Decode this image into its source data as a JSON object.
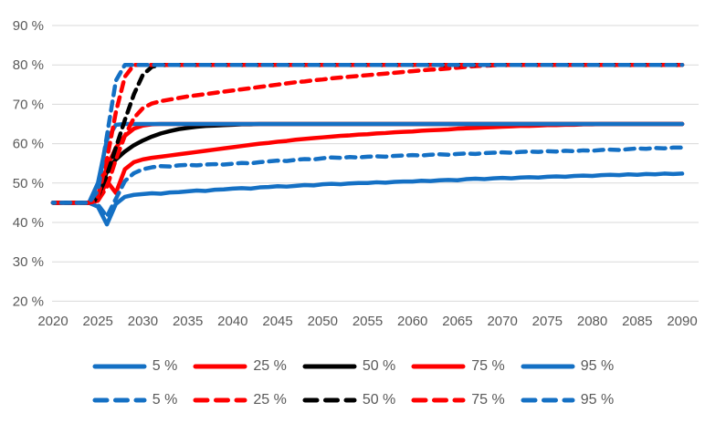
{
  "chart_data": {
    "type": "line",
    "title": "",
    "xlabel": "",
    "ylabel": "",
    "x_range": [
      2020,
      2090
    ],
    "x_step": 1,
    "ylim": [
      20,
      90
    ],
    "grid": "horizontal",
    "legend_position": "bottom-two-rows",
    "colors": {
      "blue": "#1470C4",
      "red": "#FF0000",
      "black": "#000000",
      "grid": "#D9D9D9",
      "text": "#595959"
    },
    "y_ticks": [
      {
        "v": 90,
        "label": "90 %"
      },
      {
        "v": 80,
        "label": "80 %"
      },
      {
        "v": 70,
        "label": "70 %"
      },
      {
        "v": 60,
        "label": "60 %"
      },
      {
        "v": 50,
        "label": "50 %"
      },
      {
        "v": 40,
        "label": "40 %"
      },
      {
        "v": 30,
        "label": "30 %"
      },
      {
        "v": 20,
        "label": "20 %"
      }
    ],
    "x_ticks": [
      {
        "v": 2020,
        "label": "2020"
      },
      {
        "v": 2025,
        "label": "2025"
      },
      {
        "v": 2030,
        "label": "2030"
      },
      {
        "v": 2035,
        "label": "2035"
      },
      {
        "v": 2040,
        "label": "2040"
      },
      {
        "v": 2045,
        "label": "2045"
      },
      {
        "v": 2050,
        "label": "2050"
      },
      {
        "v": 2055,
        "label": "2055"
      },
      {
        "v": 2060,
        "label": "2060"
      },
      {
        "v": 2065,
        "label": "2065"
      },
      {
        "v": 2070,
        "label": "2070"
      },
      {
        "v": 2075,
        "label": "2075"
      },
      {
        "v": 2080,
        "label": "2080"
      },
      {
        "v": 2085,
        "label": "2085"
      },
      {
        "v": 2090,
        "label": "2090"
      }
    ],
    "series": [
      {
        "name": "5 %",
        "color": "#1470C4",
        "dash": false,
        "values": [
          45,
          45,
          45,
          45,
          45,
          44,
          39.5,
          44.7,
          46.5,
          47,
          47.2,
          47.4,
          47.3,
          47.6,
          47.7,
          47.9,
          48.1,
          48,
          48.3,
          48.4,
          48.6,
          48.7,
          48.6,
          48.9,
          49,
          49.2,
          49.1,
          49.3,
          49.5,
          49.4,
          49.7,
          49.8,
          49.7,
          49.9,
          50,
          50,
          50.2,
          50.1,
          50.3,
          50.4,
          50.4,
          50.6,
          50.5,
          50.7,
          50.8,
          50.7,
          51,
          51.1,
          51,
          51.2,
          51.3,
          51.2,
          51.4,
          51.5,
          51.4,
          51.6,
          51.7,
          51.6,
          51.8,
          51.9,
          51.8,
          52,
          52.1,
          52,
          52.2,
          52.1,
          52.3,
          52.2,
          52.4,
          52.3,
          52.4
        ]
      },
      {
        "name": "25 %",
        "color": "#FF0000",
        "dash": false,
        "values": [
          45,
          45,
          45,
          45,
          45,
          45.5,
          50.5,
          47.5,
          53.5,
          55.3,
          56,
          56.4,
          56.7,
          57,
          57.3,
          57.6,
          57.9,
          58.2,
          58.5,
          58.8,
          59.1,
          59.4,
          59.7,
          60,
          60.2,
          60.5,
          60.7,
          61,
          61.2,
          61.4,
          61.6,
          61.8,
          62,
          62.1,
          62.3,
          62.4,
          62.6,
          62.7,
          62.9,
          63,
          63.1,
          63.3,
          63.4,
          63.5,
          63.6,
          63.8,
          63.9,
          64,
          64.1,
          64.2,
          64.3,
          64.4,
          64.5,
          64.5,
          64.6,
          64.7,
          64.7,
          64.8,
          64.8,
          64.9,
          64.9,
          65,
          65,
          65,
          65,
          65,
          65,
          65,
          65,
          65,
          65
        ]
      },
      {
        "name": "50 %",
        "color": "#000000",
        "dash": false,
        "values": [
          45,
          45,
          45,
          45,
          45,
          46,
          53,
          56,
          58,
          59.6,
          60.8,
          61.8,
          62.6,
          63.2,
          63.7,
          64,
          64.3,
          64.5,
          64.6,
          64.7,
          64.8,
          64.9,
          64.9,
          65,
          65,
          65,
          65,
          65,
          65,
          65,
          65,
          65,
          65,
          65,
          65,
          65,
          65,
          65,
          65,
          65,
          65,
          65,
          65,
          65,
          65,
          65,
          65,
          65,
          65,
          65,
          65,
          65,
          65,
          65,
          65,
          65,
          65,
          65,
          65,
          65,
          65,
          65,
          65,
          65,
          65,
          65,
          65,
          65,
          65,
          65,
          65
        ]
      },
      {
        "name": "75 %",
        "color": "#FF0000",
        "dash": false,
        "values": [
          45,
          45,
          45,
          45,
          45,
          47,
          54,
          59,
          62,
          63.8,
          64.6,
          64.9,
          65,
          65,
          65,
          65,
          65,
          65,
          65,
          65,
          65,
          65,
          65,
          65,
          65,
          65,
          65,
          65,
          65,
          65,
          65,
          65,
          65,
          65,
          65,
          65,
          65,
          65,
          65,
          65,
          65,
          65,
          65,
          65,
          65,
          65,
          65,
          65,
          65,
          65,
          65,
          65,
          65,
          65,
          65,
          65,
          65,
          65,
          65,
          65,
          65,
          65,
          65,
          65,
          65,
          65,
          65,
          65,
          65,
          65,
          65
        ]
      },
      {
        "name": "95 %",
        "color": "#1470C4",
        "dash": false,
        "values": [
          45,
          45,
          45,
          45,
          45,
          50,
          61,
          64.8,
          65,
          65,
          65,
          65,
          65,
          65,
          65,
          65,
          65,
          65,
          65,
          65,
          65,
          65,
          65,
          65,
          65,
          65,
          65,
          65,
          65,
          65,
          65,
          65,
          65,
          65,
          65,
          65,
          65,
          65,
          65,
          65,
          65,
          65,
          65,
          65,
          65,
          65,
          65,
          65,
          65,
          65,
          65,
          65,
          65,
          65,
          65,
          65,
          65,
          65,
          65,
          65,
          65,
          65,
          65,
          65,
          65,
          65,
          65,
          65,
          65,
          65,
          65
        ]
      },
      {
        "name": "5 %",
        "color": "#1470C4",
        "dash": true,
        "values": [
          45,
          45,
          45,
          45,
          45,
          44.5,
          41.5,
          46,
          50.5,
          52.5,
          53.5,
          54,
          54.3,
          54.2,
          54.5,
          54.6,
          54.5,
          54.7,
          54.8,
          54.7,
          54.9,
          55.1,
          55,
          55.3,
          55.5,
          55.7,
          55.6,
          55.9,
          56.1,
          56,
          56.3,
          56.5,
          56.4,
          56.6,
          56.5,
          56.7,
          56.8,
          56.7,
          56.9,
          57,
          57.1,
          57,
          57.2,
          57.3,
          57.2,
          57.4,
          57.5,
          57.4,
          57.6,
          57.7,
          57.8,
          57.7,
          57.9,
          58,
          57.9,
          58.1,
          58,
          58.2,
          58.1,
          58.3,
          58.2,
          58.4,
          58.5,
          58.4,
          58.6,
          58.8,
          58.7,
          58.9,
          58.8,
          59,
          59
        ]
      },
      {
        "name": "25 %",
        "color": "#FF0000",
        "dash": true,
        "values": [
          45,
          45,
          45,
          45,
          45,
          45.5,
          49,
          56,
          62,
          66.5,
          69,
          70.2,
          70.8,
          71.2,
          71.6,
          72,
          72.3,
          72.6,
          72.9,
          73.2,
          73.5,
          73.8,
          74.1,
          74.4,
          74.7,
          75,
          75.3,
          75.6,
          75.8,
          76.1,
          76.3,
          76.6,
          76.8,
          77,
          77.2,
          77.4,
          77.6,
          77.8,
          78,
          78.2,
          78.4,
          78.6,
          78.8,
          78.9,
          79.1,
          79.3,
          79.5,
          79.7,
          79.8,
          79.9,
          80,
          80,
          80,
          80,
          80,
          80,
          80,
          80,
          80,
          80,
          80,
          80,
          80,
          80,
          80,
          80,
          80,
          80,
          80,
          80,
          80
        ]
      },
      {
        "name": "50 %",
        "color": "#000000",
        "dash": true,
        "values": [
          45,
          45,
          45,
          45,
          45,
          46.5,
          52,
          59,
          66,
          72.5,
          77.5,
          79.5,
          80,
          80,
          80,
          80,
          80,
          80,
          80,
          80,
          80,
          80,
          80,
          80,
          80,
          80,
          80,
          80,
          80,
          80,
          80,
          80,
          80,
          80,
          80,
          80,
          80,
          80,
          80,
          80,
          80,
          80,
          80,
          80,
          80,
          80,
          80,
          80,
          80,
          80,
          80,
          80,
          80,
          80,
          80,
          80,
          80,
          80,
          80,
          80,
          80,
          80,
          80,
          80,
          80,
          80,
          80,
          80,
          80,
          80,
          80
        ]
      },
      {
        "name": "75 %",
        "color": "#FF0000",
        "dash": true,
        "values": [
          45,
          45,
          45,
          45,
          45,
          46.5,
          56,
          68,
          77,
          80,
          80,
          80,
          80,
          80,
          80,
          80,
          80,
          80,
          80,
          80,
          80,
          80,
          80,
          80,
          80,
          80,
          80,
          80,
          80,
          80,
          80,
          80,
          80,
          80,
          80,
          80,
          80,
          80,
          80,
          80,
          80,
          80,
          80,
          80,
          80,
          80,
          80,
          80,
          80,
          80,
          80,
          80,
          80,
          80,
          80,
          80,
          80,
          80,
          80,
          80,
          80,
          80,
          80,
          80,
          80,
          80,
          80,
          80,
          80,
          80,
          80
        ]
      },
      {
        "name": "95 %",
        "color": "#1470C4",
        "dash": true,
        "values": [
          45,
          45,
          45,
          45,
          45,
          48,
          62,
          76,
          80,
          80,
          80,
          80,
          80,
          80,
          80,
          80,
          80,
          80,
          80,
          80,
          80,
          80,
          80,
          80,
          80,
          80,
          80,
          80,
          80,
          80,
          80,
          80,
          80,
          80,
          80,
          80,
          80,
          80,
          80,
          80,
          80,
          80,
          80,
          80,
          80,
          80,
          80,
          80,
          80,
          80,
          80,
          80,
          80,
          80,
          80,
          80,
          80,
          80,
          80,
          80,
          80,
          80,
          80,
          80,
          80,
          80,
          80,
          80,
          80,
          80,
          80
        ]
      }
    ]
  }
}
